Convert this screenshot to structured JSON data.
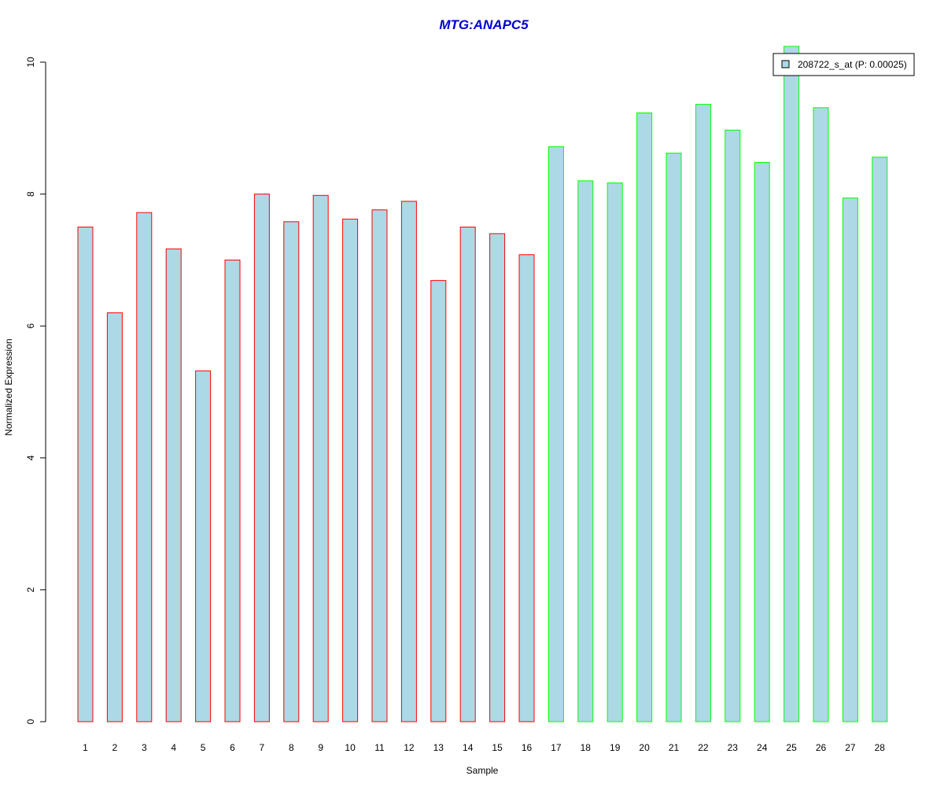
{
  "chart_data": {
    "type": "bar",
    "title": "MTG:ANAPC5",
    "xlabel": "Sample",
    "ylabel": "Normalized Expression",
    "ylim": [
      0,
      10
    ],
    "yticks": [
      0,
      2,
      4,
      6,
      8,
      10
    ],
    "grid": false,
    "legend_position": "top-right",
    "categories": [
      "1",
      "2",
      "3",
      "4",
      "5",
      "6",
      "7",
      "8",
      "9",
      "10",
      "11",
      "12",
      "13",
      "14",
      "15",
      "16",
      "17",
      "18",
      "19",
      "20",
      "21",
      "22",
      "23",
      "24",
      "25",
      "26",
      "27",
      "28"
    ],
    "series": [
      {
        "name": "208722_s_at (P: 0.00025)",
        "values": [
          7.5,
          6.2,
          7.72,
          7.17,
          5.32,
          7.0,
          8.0,
          7.58,
          7.98,
          7.62,
          7.76,
          7.89,
          6.69,
          7.5,
          7.4,
          7.08,
          8.72,
          8.2,
          8.17,
          9.23,
          8.62,
          9.36,
          8.97,
          8.48,
          10.24,
          9.31,
          7.94,
          8.56
        ],
        "fill_color": "#add8e6"
      }
    ],
    "group_colors": {
      "first": "#ff0000",
      "second": "#00ff00"
    },
    "group_split_after": 16,
    "title_color": "#0000cc"
  }
}
